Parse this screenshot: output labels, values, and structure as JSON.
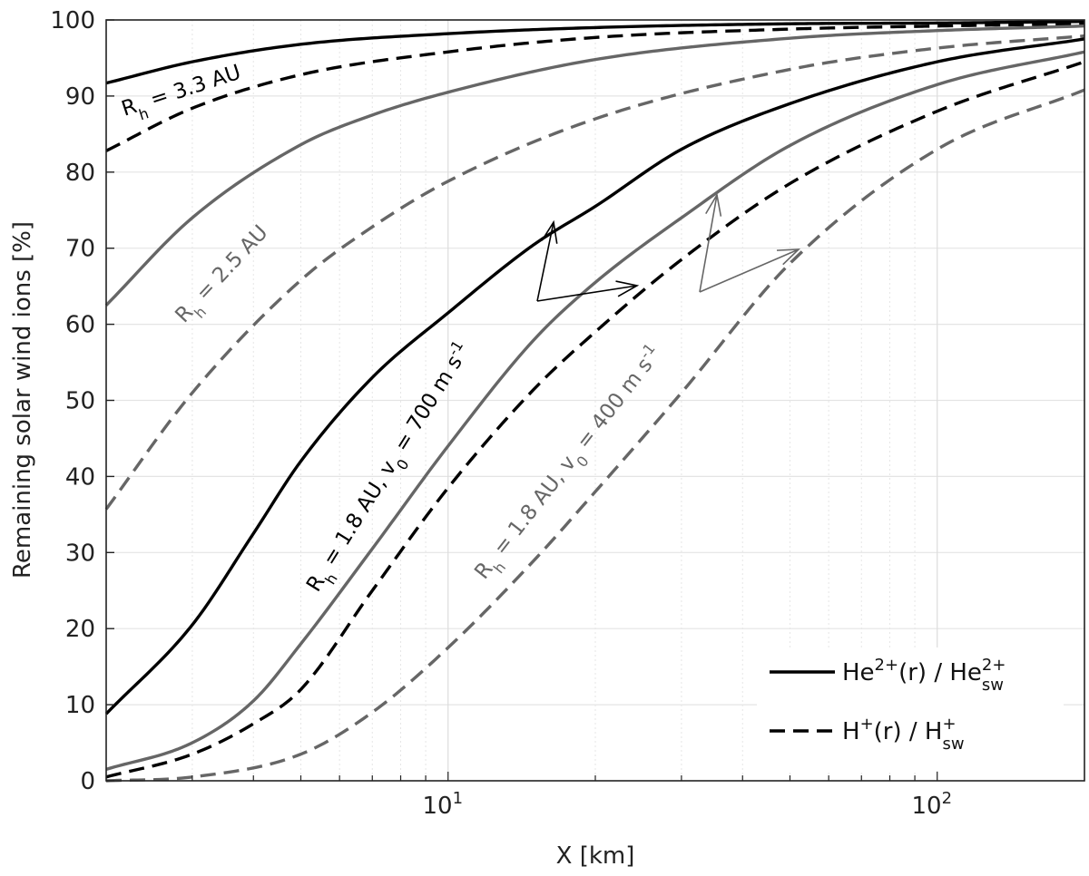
{
  "chart_data": {
    "type": "line",
    "title": "",
    "xlabel": "X [km]",
    "ylabel": "Remaining solar wind ions [%]",
    "xscale": "log",
    "xlim": [
      2,
      200
    ],
    "ylim": [
      0,
      100
    ],
    "grid": true,
    "legend_position": "bottom-right",
    "y_ticks": [
      0,
      10,
      20,
      30,
      40,
      50,
      60,
      70,
      80,
      90,
      100
    ],
    "x_tick_labels": [
      {
        "value": 10,
        "base": "10",
        "exp": "1"
      },
      {
        "value": 100,
        "base": "10",
        "exp": "2"
      }
    ],
    "legend": [
      {
        "style": "solid",
        "label": "He",
        "sup": "2+",
        "mid": "(r) / He",
        "sub2": "sw",
        "sup2": "2+"
      },
      {
        "style": "dashed",
        "label": "H",
        "sup": "+",
        "mid": "(r) / H",
        "sub2": "sw",
        "sup2": "+"
      }
    ],
    "colors": {
      "black": "#000000",
      "gray": "#666666"
    },
    "series": [
      {
        "color": "black",
        "style": "solid",
        "x": [
          2,
          3,
          5,
          10,
          20,
          50,
          100,
          200
        ],
        "y": [
          91.7,
          94.5,
          96.8,
          98.2,
          99.0,
          99.5,
          99.6,
          99.8
        ]
      },
      {
        "color": "black",
        "style": "dashed",
        "x": [
          2,
          3,
          5,
          10,
          20,
          50,
          100,
          200
        ],
        "y": [
          82.8,
          88.4,
          92.8,
          95.8,
          97.7,
          98.8,
          99.2,
          99.5
        ]
      },
      {
        "color": "gray",
        "style": "solid",
        "x": [
          2,
          3,
          5,
          7,
          10,
          20,
          50,
          100,
          200
        ],
        "y": [
          62.5,
          74.0,
          83.6,
          87.5,
          90.5,
          94.8,
          97.6,
          98.6,
          99.2
        ]
      },
      {
        "color": "gray",
        "style": "dashed",
        "x": [
          2,
          3,
          5,
          7,
          10,
          20,
          50,
          100,
          200
        ],
        "y": [
          35.7,
          51.0,
          65.8,
          72.8,
          78.8,
          87.0,
          93.5,
          96.3,
          97.9
        ]
      },
      {
        "color": "black",
        "style": "solid",
        "x": [
          2,
          3,
          4,
          5,
          7,
          10,
          15,
          20,
          30,
          50,
          100,
          200
        ],
        "y": [
          8.8,
          20.5,
          32.5,
          42.0,
          53.0,
          61.5,
          70.5,
          75.5,
          83.0,
          89.0,
          94.5,
          97.5
        ]
      },
      {
        "color": "black",
        "style": "dashed",
        "x": [
          2,
          3,
          4,
          5,
          7,
          10,
          15,
          20,
          30,
          50,
          100,
          200
        ],
        "y": [
          0.5,
          3.5,
          7.5,
          12.0,
          25.0,
          38.5,
          51.5,
          59.0,
          68.5,
          78.5,
          88.0,
          94.5
        ]
      },
      {
        "color": "gray",
        "style": "solid",
        "x": [
          2,
          3,
          4,
          5,
          7,
          10,
          15,
          20,
          30,
          50,
          100,
          200
        ],
        "y": [
          1.5,
          5.0,
          10.5,
          18.0,
          30.5,
          44.0,
          58.0,
          65.5,
          74.0,
          83.5,
          91.5,
          95.8
        ]
      },
      {
        "color": "gray",
        "style": "dashed",
        "x": [
          2,
          3,
          5,
          7,
          10,
          15,
          20,
          30,
          50,
          100,
          200
        ],
        "y": [
          0.0,
          0.5,
          3.5,
          9.0,
          17.5,
          29.0,
          38.0,
          51.0,
          68.0,
          83.0,
          90.8
        ]
      }
    ],
    "annotations": [
      {
        "color": "black",
        "parts": [
          {
            "t": "R",
            "k": "n"
          },
          {
            "t": "h",
            "k": "sub"
          },
          {
            "t": " = 3.3 AU",
            "k": "n"
          }
        ]
      },
      {
        "color": "gray",
        "parts": [
          {
            "t": "R",
            "k": "n"
          },
          {
            "t": "h",
            "k": "sub"
          },
          {
            "t": " = 2.5 AU",
            "k": "n"
          }
        ]
      },
      {
        "color": "black",
        "parts": [
          {
            "t": "R",
            "k": "n"
          },
          {
            "t": "h",
            "k": "sub"
          },
          {
            "t": " = 1.8 AU, v",
            "k": "n"
          },
          {
            "t": "0",
            "k": "sub"
          },
          {
            "t": " = 700 m s",
            "k": "n"
          },
          {
            "t": "-1",
            "k": "sup"
          }
        ]
      },
      {
        "color": "gray",
        "parts": [
          {
            "t": "R",
            "k": "n"
          },
          {
            "t": "h",
            "k": "sub"
          },
          {
            "t": " = 1.8 AU, v",
            "k": "n"
          },
          {
            "t": "0",
            "k": "sub"
          },
          {
            "t": " = 400 m s",
            "k": "n"
          },
          {
            "t": "-1",
            "k": "sup"
          }
        ]
      }
    ]
  }
}
